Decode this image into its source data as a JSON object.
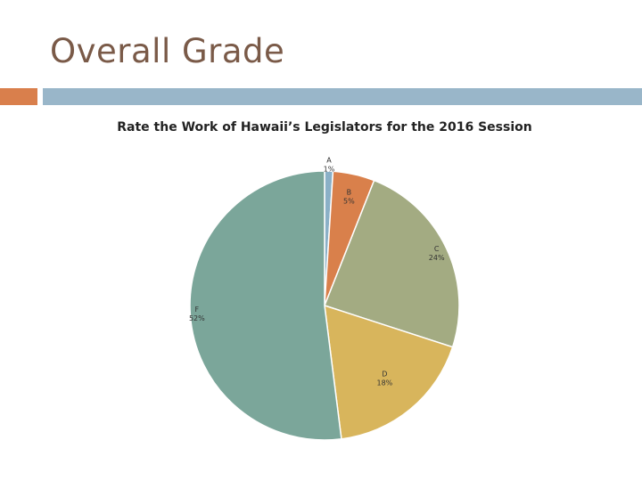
{
  "slide": {
    "title": "Overall Grade",
    "accent_color": "#d97f4c",
    "rule_color": "#99b6c9",
    "title_color": "#7a5a48"
  },
  "chart_data": {
    "type": "pie",
    "title": "Rate the Work of Hawaii’s Legislators for the 2016 Session",
    "slices": [
      {
        "label": "A",
        "value": 1,
        "display": "1%",
        "color": "#8ab0c7"
      },
      {
        "label": "B",
        "value": 5,
        "display": "5%",
        "color": "#d9804b"
      },
      {
        "label": "C",
        "value": 24,
        "display": "24%",
        "color": "#a3ab82"
      },
      {
        "label": "D",
        "value": 18,
        "display": "18%",
        "color": "#d8b55c"
      },
      {
        "label": "F",
        "value": 52,
        "display": "52%",
        "color": "#7ba69a"
      }
    ]
  }
}
